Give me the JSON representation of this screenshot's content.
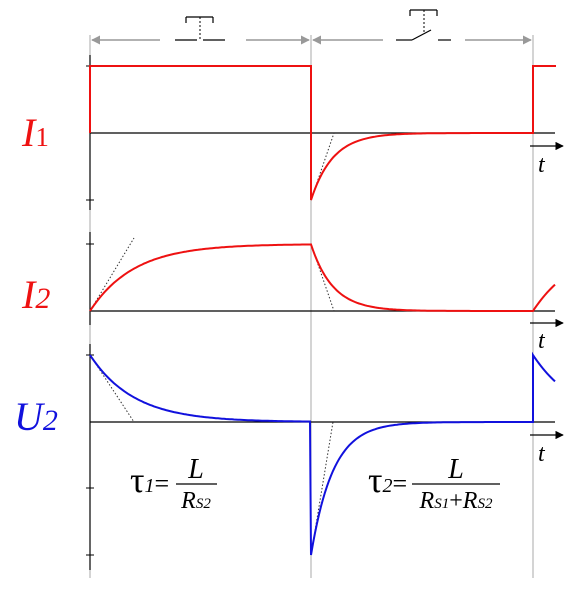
{
  "signals": [
    {
      "key": "I1",
      "letter": "I",
      "sub": "1",
      "color": "#ee1111"
    },
    {
      "key": "I2",
      "letter": "I",
      "sub": "2",
      "color": "#ee1111"
    },
    {
      "key": "U2",
      "letter": "U",
      "sub": "2",
      "color": "#1111dd"
    }
  ],
  "time_label": "t",
  "switch_states": [
    "closed",
    "open"
  ],
  "formulas": [
    {
      "tau": "τ",
      "sub": "1",
      "eq": "=",
      "num": "L",
      "den": [
        {
          "r": "R",
          "s": "S2"
        }
      ]
    },
    {
      "tau": "τ",
      "sub": "2",
      "eq": "=",
      "num": "L",
      "den": [
        {
          "r": "R",
          "s": "S1"
        },
        {
          "plus": "+"
        },
        {
          "r": "R",
          "s": "S2"
        }
      ]
    }
  ],
  "colors": {
    "current": "#ee1111",
    "voltage": "#1111dd",
    "axis": "#000000",
    "guide": "#999999",
    "tangent": "#333333"
  }
}
